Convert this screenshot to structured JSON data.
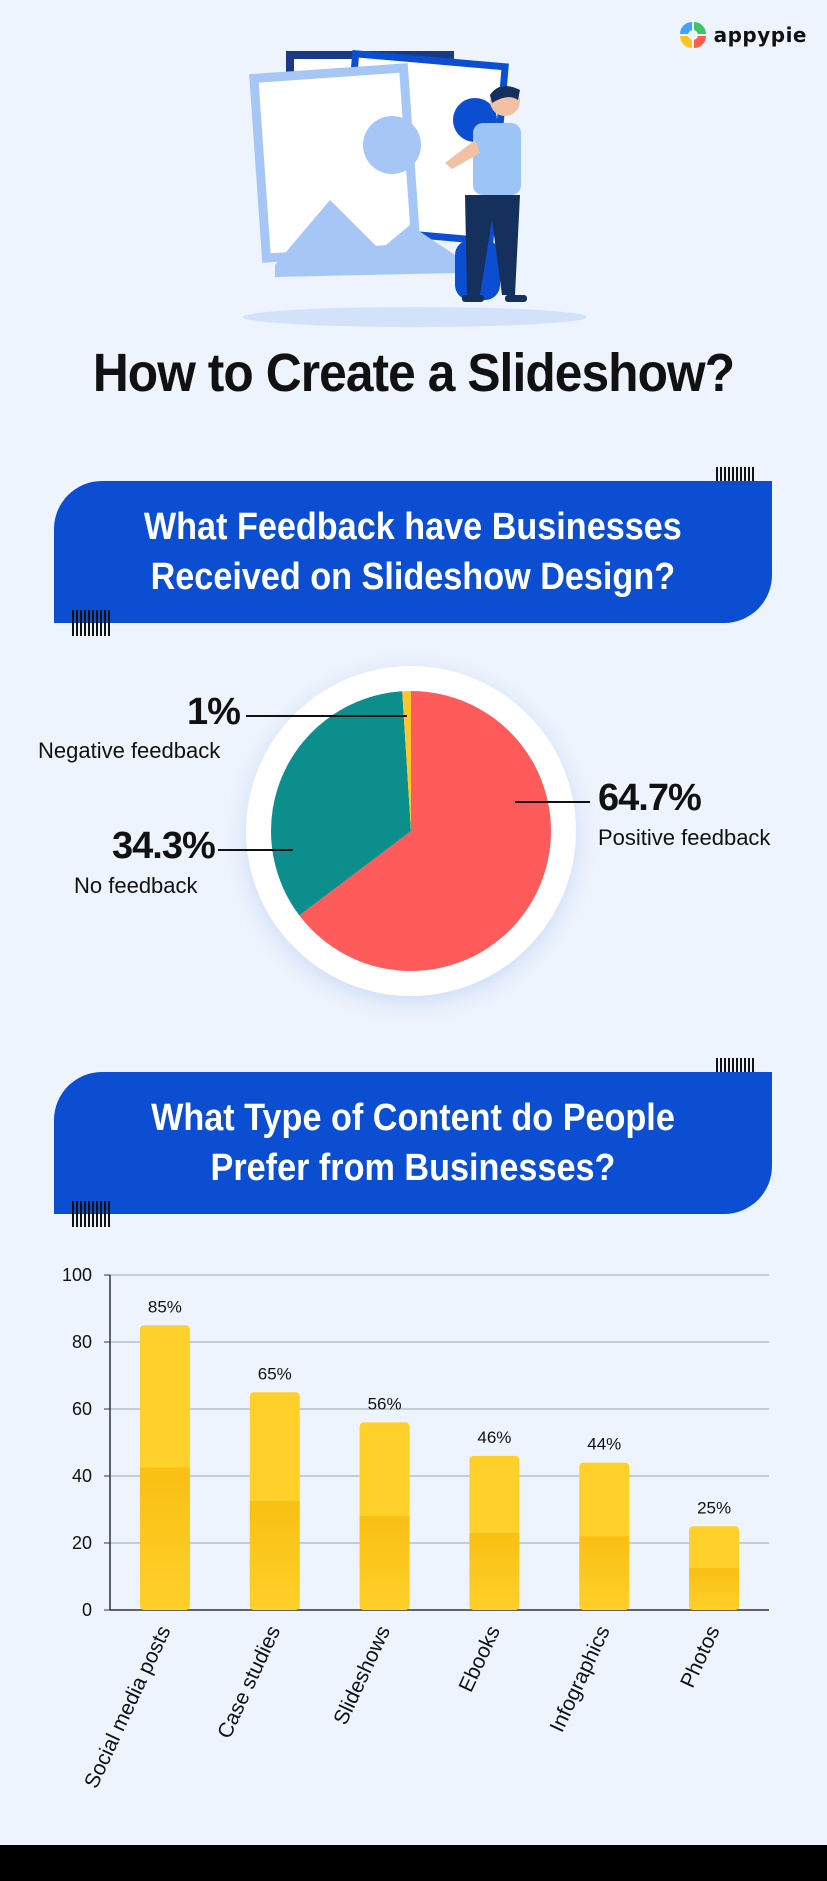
{
  "brand": {
    "name": "appypie"
  },
  "title": "How to Create a Slideshow?",
  "section1": {
    "heading": "What Feedback have Businesses\nReceived on Slideshow Design?"
  },
  "section2": {
    "heading": "What Type of Content do People\nPrefer from Businesses?"
  },
  "colors": {
    "banner": "#0b4ed1",
    "positive": "#fe5b5a",
    "none": "#0c8e8c",
    "negative": "#ffc52a",
    "bar": "#ffd02a",
    "background": "#eef4fd"
  },
  "chart_data": [
    {
      "type": "pie",
      "slices": [
        {
          "label": "Positive feedback",
          "value": 64.7,
          "display": "64.7%"
        },
        {
          "label": "No feedback",
          "value": 34.3,
          "display": "34.3%"
        },
        {
          "label": "Negative feedback",
          "value": 1,
          "display": "1%"
        }
      ]
    },
    {
      "type": "bar",
      "categories": [
        "Social media posts",
        "Case studies",
        "Slideshows",
        "Ebooks",
        "Infographics",
        "Photos"
      ],
      "values": [
        85,
        65,
        56,
        46,
        44,
        25
      ],
      "value_labels": [
        "85%",
        "65%",
        "56%",
        "46%",
        "44%",
        "25%"
      ],
      "yticks": [
        "0",
        "20",
        "40",
        "60",
        "80",
        "100"
      ],
      "ylim": [
        0,
        100
      ],
      "grid": true
    }
  ]
}
